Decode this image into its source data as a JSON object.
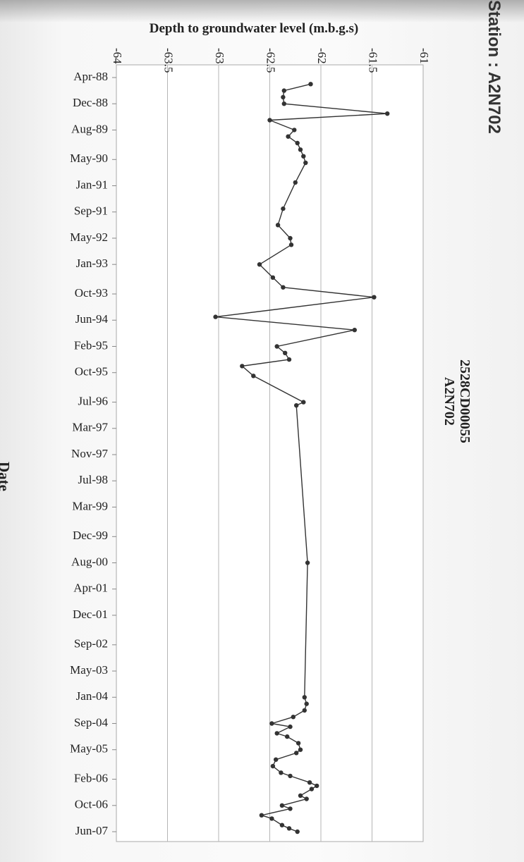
{
  "page": {
    "station_fragment": "Station : A2N702"
  },
  "chart_data": {
    "type": "line",
    "title": "2528CD00055\nA2N702",
    "title_lines": [
      "2528CD00055",
      "A2N702"
    ],
    "xlabel": "Date",
    "ylabel": "Depth to groundwater level (m.b.g.s)",
    "depth_ticks": [
      "-64",
      "-63.5",
      "-63",
      "-62.5",
      "-62",
      "-61.5",
      "-61"
    ],
    "depth_range": [
      -64,
      -61
    ],
    "date_ticks": [
      "Apr-88",
      "Dec-88",
      "Aug-89",
      "May-90",
      "Jan-91",
      "Sep-91",
      "May-92",
      "Jan-93",
      "Oct-93",
      "Jun-94",
      "Feb-95",
      "Oct-95",
      "Jul-96",
      "Mar-97",
      "Nov-97",
      "Jul-98",
      "Mar-99",
      "Dec-99",
      "Aug-00",
      "Apr-01",
      "Dec-01",
      "Sep-02",
      "May-03",
      "Jan-04",
      "Sep-04",
      "May-05",
      "Feb-06",
      "Oct-06",
      "Jun-07"
    ],
    "date_range": [
      "1988-04",
      "2007-06"
    ],
    "grid": true,
    "axis_orientation": "rotated 90° clockwise: depth along top, date along left",
    "series": [
      {
        "color": "#333333",
        "points": [
          [
            "1988-06",
            -62.1
          ],
          [
            "1988-08",
            -62.36
          ],
          [
            "1988-10",
            -62.37
          ],
          [
            "1988-12",
            -62.36
          ],
          [
            "1989-03",
            -61.35
          ],
          [
            "1989-05",
            -62.5
          ],
          [
            "1989-08",
            -62.26
          ],
          [
            "1989-10",
            -62.32
          ],
          [
            "1989-12",
            -62.23
          ],
          [
            "1990-02",
            -62.2
          ],
          [
            "1990-04",
            -62.17
          ],
          [
            "1990-06",
            -62.15
          ],
          [
            "1990-12",
            -62.25
          ],
          [
            "1991-08",
            -62.37
          ],
          [
            "1992-01",
            -62.42
          ],
          [
            "1992-05",
            -62.3
          ],
          [
            "1992-07",
            -62.29
          ],
          [
            "1993-01",
            -62.6
          ],
          [
            "1993-05",
            -62.47
          ],
          [
            "1993-08",
            -62.37
          ],
          [
            "1993-11",
            -61.48
          ],
          [
            "1994-05",
            -63.03
          ],
          [
            "1994-09",
            -61.67
          ],
          [
            "1995-02",
            -62.43
          ],
          [
            "1995-04",
            -62.35
          ],
          [
            "1995-06",
            -62.31
          ],
          [
            "1995-08",
            -62.77
          ],
          [
            "1995-11",
            -62.66
          ],
          [
            "1996-07",
            -62.17
          ],
          [
            "1996-08",
            -62.24
          ],
          [
            "2000-08",
            -62.13
          ],
          [
            "2004-01",
            -62.16
          ],
          [
            "2004-03",
            -62.14
          ],
          [
            "2004-05",
            -62.16
          ],
          [
            "2004-07",
            -62.27
          ],
          [
            "2004-09",
            -62.48
          ],
          [
            "2004-10",
            -62.3
          ],
          [
            "2004-12",
            -62.43
          ],
          [
            "2005-01",
            -62.33
          ],
          [
            "2005-03",
            -62.22
          ],
          [
            "2005-05",
            -62.2
          ],
          [
            "2005-06",
            -62.24
          ],
          [
            "2005-08",
            -62.44
          ],
          [
            "2005-10",
            -62.47
          ],
          [
            "2005-12",
            -62.39
          ],
          [
            "2006-01",
            -62.3
          ],
          [
            "2006-03",
            -62.11
          ],
          [
            "2006-04",
            -62.04
          ],
          [
            "2006-05",
            -62.09
          ],
          [
            "2006-07",
            -62.2
          ],
          [
            "2006-08",
            -62.14
          ],
          [
            "2006-10",
            -62.38
          ],
          [
            "2006-11",
            -62.3
          ],
          [
            "2007-01",
            -62.58
          ],
          [
            "2007-02",
            -62.48
          ],
          [
            "2007-04",
            -62.38
          ],
          [
            "2007-05",
            -62.31
          ],
          [
            "2007-06",
            -62.23
          ]
        ]
      }
    ]
  }
}
